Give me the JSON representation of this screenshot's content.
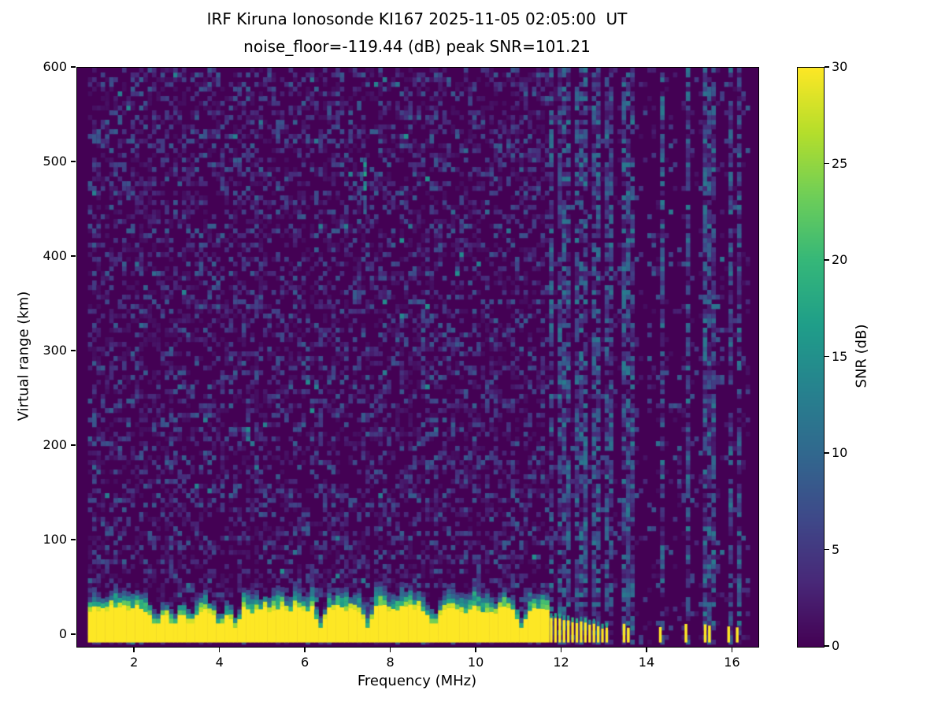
{
  "chart_data": {
    "type": "heatmap",
    "title": "IRF Kiruna Ionosonde KI167 2025-11-05 02:05:00  UT",
    "subtitle": "noise_floor=-119.44 (dB) peak SNR=101.21",
    "xlabel": "Frequency (MHz)",
    "ylabel": "Virtual range (km)",
    "xlim": [
      0.65,
      16.6
    ],
    "ylim": [
      -12.5,
      600
    ],
    "x_ticks": [
      2,
      4,
      6,
      8,
      10,
      12,
      14,
      16
    ],
    "y_ticks": [
      0,
      100,
      200,
      300,
      400,
      500,
      600
    ],
    "freq_range": [
      0.9,
      16.45
    ],
    "freq_step_mhz": 0.1,
    "range_step_km": 5,
    "colorbar": {
      "label": "SNR (dB)",
      "min": 0,
      "max": 30,
      "ticks": [
        0,
        5,
        10,
        15,
        20,
        25,
        30
      ],
      "colormap": "viridis"
    },
    "viridis_stops": [
      "#440154",
      "#482878",
      "#3e4989",
      "#31688e",
      "#26828e",
      "#1f9e89",
      "#35b779",
      "#6ece58",
      "#b5de2b",
      "#fde725"
    ],
    "noise": {
      "seed": 167,
      "density": 0.42,
      "max_db": 9,
      "right_region_density": 0.12
    },
    "ground_echo": {
      "continuous_max_freq": 11.62,
      "band_bottom_km": -8,
      "band_top_km_mean": 28,
      "cap_extra_km": 14,
      "notch_freqs": [
        2.45,
        2.85,
        3.25,
        3.95,
        4.3,
        6.3,
        7.4,
        8.95,
        11.0
      ],
      "comb_freq_range": [
        11.65,
        13.1
      ],
      "comb_height_km_start": 20,
      "comb_height_km_end": 7,
      "isolated_stripe_freqs": [
        13.45,
        13.55,
        14.3,
        14.9,
        15.35,
        15.45,
        15.9,
        16.1
      ]
    },
    "rfi_stripe_freqs": [
      11.7,
      11.9,
      12.0,
      12.1,
      12.3,
      12.4,
      12.5,
      12.7,
      12.8,
      13.0,
      13.1,
      13.45,
      13.55,
      14.3,
      14.9,
      15.35,
      15.45,
      15.9,
      16.1
    ],
    "blob": {
      "freq": 7.35,
      "range_km": [
        440,
        505
      ],
      "max_db": 18
    }
  }
}
